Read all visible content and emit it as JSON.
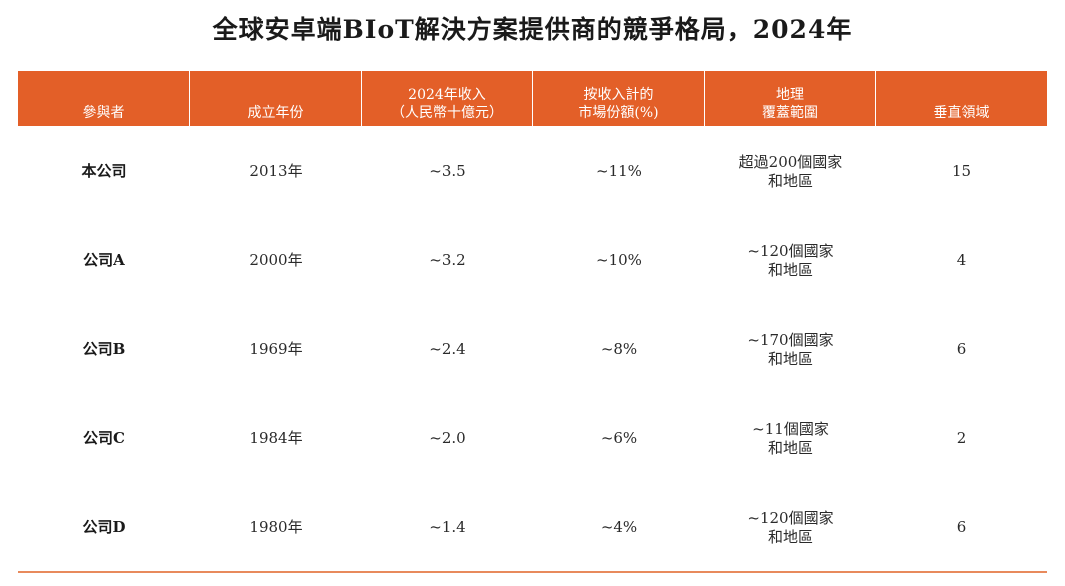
{
  "title": "全球安卓端BIoT解決方案提供商的競爭格局，2024年",
  "table": {
    "headers": [
      [
        "參與者"
      ],
      [
        "成立年份"
      ],
      [
        "2024年收入",
        "（人民幣十億元）"
      ],
      [
        "按收入計的",
        "市場份額(%)"
      ],
      [
        "地理",
        "覆蓋範圍"
      ],
      [
        "垂直領域"
      ]
    ],
    "rows": [
      {
        "participant": "本公司",
        "founded": "2013年",
        "revenue": "~3.5",
        "share": "~11%",
        "coverage": [
          "超過200個國家",
          "和地區"
        ],
        "verticals": "15"
      },
      {
        "participant": "公司A",
        "founded": "2000年",
        "revenue": "~3.2",
        "share": "~10%",
        "coverage": [
          "~120個國家",
          "和地區"
        ],
        "verticals": "4"
      },
      {
        "participant": "公司B",
        "founded": "1969年",
        "revenue": "~2.4",
        "share": "~8%",
        "coverage": [
          "~170個國家",
          "和地區"
        ],
        "verticals": "6"
      },
      {
        "participant": "公司C",
        "founded": "1984年",
        "revenue": "~2.0",
        "share": "~6%",
        "coverage": [
          "~11個國家",
          "和地區"
        ],
        "verticals": "2"
      },
      {
        "participant": "公司D",
        "founded": "1980年",
        "revenue": "~1.4",
        "share": "~4%",
        "coverage": [
          "~120個國家",
          "和地區"
        ],
        "verticals": "6"
      }
    ]
  },
  "colors": {
    "header_bg": "#e35f28",
    "header_text": "#ffffff",
    "rule": "#e88a5c"
  }
}
